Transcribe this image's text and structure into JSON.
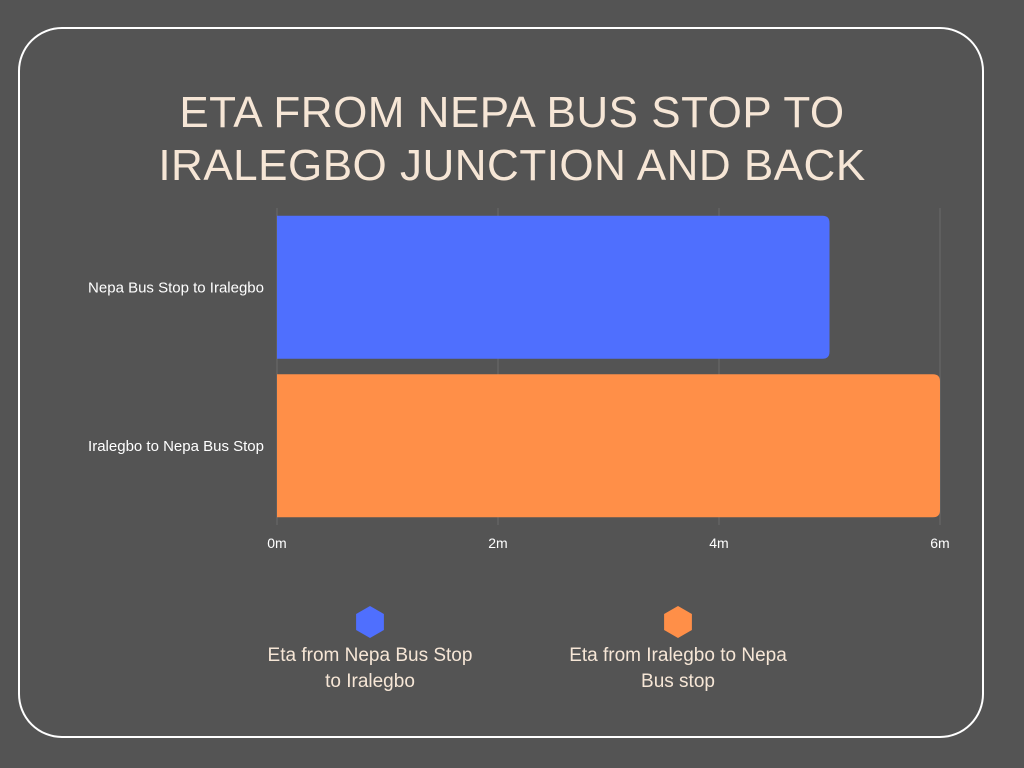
{
  "chart_data": {
    "type": "bar",
    "orientation": "horizontal",
    "title_lines": [
      "ETA FROM NEPA BUS STOP TO",
      "IRALEGBO JUNCTION AND BACK"
    ],
    "categories": [
      "Nepa Bus Stop to Iralegbo",
      "Iralegbo to Nepa Bus Stop"
    ],
    "values": [
      5,
      6
    ],
    "unit": "m",
    "xlim": [
      0,
      6
    ],
    "ticks": [
      0,
      2,
      4,
      6
    ],
    "tick_labels": [
      "0m",
      "2m",
      "4m",
      "6m"
    ],
    "grid": true,
    "colors": [
      "#4f6ffe",
      "#ff8f48"
    ],
    "legend": {
      "placement": "bottom",
      "entries": [
        {
          "lines": [
            "Eta from Nepa Bus Stop",
            "to Iralegbo"
          ],
          "color": "#4f6ffe"
        },
        {
          "lines": [
            "Eta from Iralegbo to Nepa",
            "Bus stop"
          ],
          "color": "#ff8f48"
        }
      ]
    }
  }
}
